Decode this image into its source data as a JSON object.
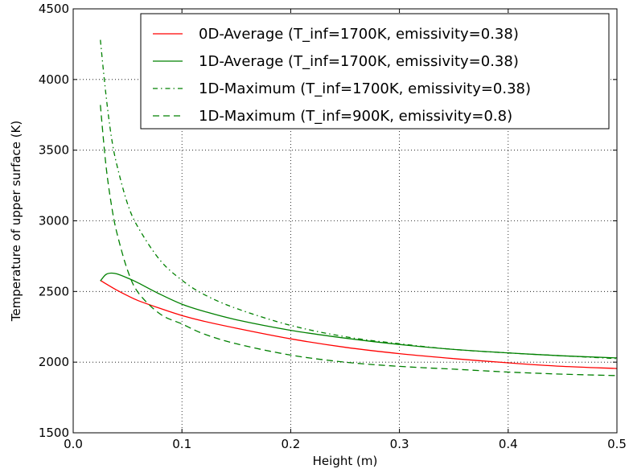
{
  "chart_data": {
    "type": "line",
    "xlabel": "Height (m)",
    "ylabel": "Temperature of upper surface (K)",
    "xlim": [
      0.0,
      0.5
    ],
    "ylim": [
      1500,
      4500
    ],
    "xticks": [
      0.0,
      0.1,
      0.2,
      0.3,
      0.4,
      0.5
    ],
    "xtick_labels": [
      "0.0",
      "0.1",
      "0.2",
      "0.3",
      "0.4",
      "0.5"
    ],
    "yticks": [
      1500,
      2000,
      2500,
      3000,
      3500,
      4000,
      4500
    ],
    "ytick_labels": [
      "1500",
      "2000",
      "2500",
      "3000",
      "3500",
      "4000",
      "4500"
    ],
    "grid": true,
    "legend_position": "top-right",
    "series": [
      {
        "name": "0D-Average (T_inf=1700K, emissivity=0.38)",
        "color": "#ff0000",
        "style": "solid",
        "x": [
          0.025,
          0.04,
          0.05,
          0.06,
          0.08,
          0.1,
          0.12,
          0.15,
          0.2,
          0.25,
          0.3,
          0.35,
          0.4,
          0.45,
          0.5
        ],
        "y": [
          2578,
          2510,
          2470,
          2435,
          2380,
          2330,
          2290,
          2240,
          2165,
          2105,
          2060,
          2025,
          1995,
          1970,
          1955
        ]
      },
      {
        "name": "1D-Average (T_inf=1700K, emissivity=0.38)",
        "color": "#008000",
        "style": "solid",
        "x": [
          0.025,
          0.03,
          0.035,
          0.04,
          0.05,
          0.06,
          0.08,
          0.1,
          0.12,
          0.15,
          0.2,
          0.25,
          0.3,
          0.35,
          0.4,
          0.45,
          0.5
        ],
        "y": [
          2575,
          2620,
          2630,
          2625,
          2595,
          2560,
          2480,
          2410,
          2360,
          2300,
          2225,
          2170,
          2125,
          2090,
          2065,
          2045,
          2030
        ]
      },
      {
        "name": "1D-Maximum (T_inf=1700K, emissivity=0.38)",
        "color": "#008000",
        "style": "dashdot",
        "x": [
          0.025,
          0.03,
          0.035,
          0.04,
          0.05,
          0.06,
          0.08,
          0.1,
          0.12,
          0.15,
          0.2,
          0.25,
          0.3,
          0.35,
          0.4,
          0.45,
          0.5
        ],
        "y": [
          4280,
          3900,
          3600,
          3400,
          3120,
          2950,
          2720,
          2580,
          2480,
          2380,
          2260,
          2180,
          2130,
          2090,
          2065,
          2045,
          2025
        ]
      },
      {
        "name": "1D-Maximum (T_inf=900K, emissivity=0.8)",
        "color": "#008000",
        "style": "dashed",
        "x": [
          0.025,
          0.03,
          0.035,
          0.04,
          0.05,
          0.06,
          0.08,
          0.1,
          0.12,
          0.15,
          0.2,
          0.25,
          0.3,
          0.35,
          0.4,
          0.45,
          0.5
        ],
        "y": [
          3820,
          3400,
          3120,
          2920,
          2650,
          2490,
          2340,
          2270,
          2200,
          2130,
          2050,
          2000,
          1970,
          1950,
          1930,
          1915,
          1905
        ]
      }
    ]
  }
}
